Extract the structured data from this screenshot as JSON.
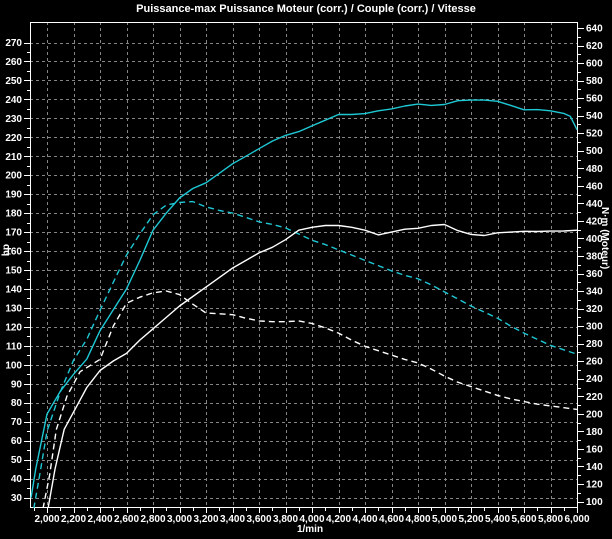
{
  "title": "Puissance-max Puissance Moteur (corr.) / Couple (corr.) / Vitesse",
  "colors": {
    "background": "#000000",
    "grid": "#858585",
    "border": "#ffffff",
    "text": "#ffffff",
    "cyan": "#1ec8d4",
    "white": "#ffffff"
  },
  "chart_data": {
    "type": "line",
    "title": "Puissance-max Puissance Moteur (corr.) / Couple (corr.) / Vitesse",
    "grid": "dashed",
    "legend": "none",
    "x_axis": {
      "label": "1/min",
      "range": [
        1872,
        6008
      ],
      "major_step": 200,
      "minor_step": 100,
      "tick_values": [
        2000,
        2200,
        2400,
        2600,
        2800,
        3000,
        3200,
        3400,
        3600,
        3800,
        4000,
        4200,
        4400,
        4600,
        4800,
        5000,
        5200,
        5400,
        5600,
        5800,
        6000
      ],
      "tick_labels": [
        "2,000",
        "2,200",
        "2,400",
        "2,600",
        "2,800",
        "3,000",
        "3,200",
        "3,400",
        "3,600",
        "3,800",
        "4,000",
        "4,200",
        "4,400",
        "4,600",
        "4,800",
        "5,000",
        "5,200",
        "5,400",
        "5,600",
        "5,800",
        "6,000"
      ]
    },
    "left_axis": {
      "label": "hp",
      "range": [
        26,
        281
      ],
      "major_step": 10,
      "minor_step": 5,
      "tick_values": [
        270,
        260,
        250,
        240,
        230,
        220,
        210,
        200,
        190,
        180,
        170,
        160,
        150,
        140,
        130,
        120,
        110,
        100,
        90,
        80,
        70,
        60,
        50,
        40,
        30
      ]
    },
    "right_axis": {
      "label": "N·m (Moteur)",
      "range": [
        93,
        647
      ],
      "major_step": 20,
      "minor_step": 10,
      "tick_values": [
        640,
        620,
        600,
        580,
        560,
        540,
        520,
        500,
        480,
        460,
        440,
        420,
        400,
        380,
        360,
        340,
        320,
        300,
        280,
        260,
        240,
        220,
        200,
        180,
        160,
        140,
        120,
        100
      ]
    },
    "series": [
      {
        "name": "puissance corrigee - courbe cyan pleine",
        "axis": "left",
        "unit": "hp",
        "color": "cyan",
        "style": "solid",
        "peak": {
          "rpm": 5250,
          "value": 239.6
        },
        "points": [
          [
            1880,
            30
          ],
          [
            1915,
            45
          ],
          [
            1950,
            57
          ],
          [
            2000,
            74
          ],
          [
            2100,
            86
          ],
          [
            2200,
            95
          ],
          [
            2300,
            103
          ],
          [
            2400,
            118
          ],
          [
            2500,
            129
          ],
          [
            2600,
            140
          ],
          [
            2700,
            155
          ],
          [
            2800,
            171
          ],
          [
            2900,
            180
          ],
          [
            3000,
            188
          ],
          [
            3100,
            193
          ],
          [
            3200,
            196
          ],
          [
            3300,
            201
          ],
          [
            3400,
            206
          ],
          [
            3500,
            210
          ],
          [
            3600,
            214
          ],
          [
            3700,
            218
          ],
          [
            3800,
            221
          ],
          [
            3900,
            223
          ],
          [
            4000,
            226
          ],
          [
            4100,
            229
          ],
          [
            4200,
            232
          ],
          [
            4300,
            232
          ],
          [
            4400,
            232.5
          ],
          [
            4500,
            234
          ],
          [
            4600,
            235
          ],
          [
            4700,
            236.5
          ],
          [
            4800,
            237.5
          ],
          [
            4900,
            236.8
          ],
          [
            5000,
            237.3
          ],
          [
            5100,
            239.3
          ],
          [
            5200,
            239.6
          ],
          [
            5300,
            239.6
          ],
          [
            5400,
            239
          ],
          [
            5500,
            236.8
          ],
          [
            5600,
            234.5
          ],
          [
            5700,
            234.6
          ],
          [
            5800,
            234
          ],
          [
            5900,
            232.6
          ],
          [
            5950,
            231
          ],
          [
            6000,
            224
          ]
        ]
      },
      {
        "name": "couple corrige - courbe cyan pointillee",
        "axis": "right",
        "unit": "N·m",
        "color": "cyan",
        "style": "dashed",
        "peak": {
          "rpm": 3100,
          "value": 442
        },
        "points": [
          [
            1900,
            92
          ],
          [
            1950,
            135
          ],
          [
            2000,
            180
          ],
          [
            2100,
            225
          ],
          [
            2200,
            261
          ],
          [
            2300,
            285
          ],
          [
            2400,
            318
          ],
          [
            2500,
            350
          ],
          [
            2600,
            381
          ],
          [
            2700,
            405
          ],
          [
            2800,
            427
          ],
          [
            2900,
            438
          ],
          [
            3000,
            441
          ],
          [
            3100,
            442
          ],
          [
            3200,
            436
          ],
          [
            3300,
            432
          ],
          [
            3400,
            429
          ],
          [
            3500,
            424
          ],
          [
            3600,
            419
          ],
          [
            3700,
            416
          ],
          [
            3800,
            412
          ],
          [
            3900,
            405
          ],
          [
            4000,
            398
          ],
          [
            4100,
            393
          ],
          [
            4200,
            387
          ],
          [
            4300,
            381
          ],
          [
            4400,
            375
          ],
          [
            4500,
            369
          ],
          [
            4600,
            363
          ],
          [
            4700,
            358
          ],
          [
            4800,
            354
          ],
          [
            4900,
            347
          ],
          [
            5000,
            339
          ],
          [
            5100,
            331
          ],
          [
            5200,
            323
          ],
          [
            5300,
            316
          ],
          [
            5400,
            309
          ],
          [
            5500,
            300
          ],
          [
            5600,
            292
          ],
          [
            5700,
            285
          ],
          [
            5800,
            278
          ],
          [
            5900,
            273
          ],
          [
            6000,
            268
          ]
        ]
      },
      {
        "name": "puissance corrigee - courbe blanche pleine",
        "axis": "left",
        "unit": "hp",
        "color": "white",
        "style": "solid",
        "peak": {
          "rpm": 5000,
          "value": 174
        },
        "points": [
          [
            2010,
            25
          ],
          [
            2060,
            45
          ],
          [
            2130,
            66
          ],
          [
            2200,
            75
          ],
          [
            2300,
            88
          ],
          [
            2400,
            97
          ],
          [
            2500,
            102
          ],
          [
            2600,
            106
          ],
          [
            2700,
            113
          ],
          [
            2800,
            119
          ],
          [
            2900,
            125
          ],
          [
            3000,
            131
          ],
          [
            3100,
            136
          ],
          [
            3200,
            141
          ],
          [
            3300,
            146
          ],
          [
            3400,
            151
          ],
          [
            3500,
            155
          ],
          [
            3600,
            159
          ],
          [
            3700,
            162
          ],
          [
            3800,
            166
          ],
          [
            3900,
            171
          ],
          [
            4000,
            172.5
          ],
          [
            4100,
            173.5
          ],
          [
            4200,
            173.5
          ],
          [
            4300,
            172.5
          ],
          [
            4400,
            171
          ],
          [
            4500,
            168.5
          ],
          [
            4600,
            170
          ],
          [
            4700,
            171.5
          ],
          [
            4800,
            172
          ],
          [
            4900,
            173.5
          ],
          [
            5000,
            174
          ],
          [
            5100,
            170.8
          ],
          [
            5200,
            168.8
          ],
          [
            5300,
            168.2
          ],
          [
            5400,
            169.6
          ],
          [
            5500,
            170
          ],
          [
            5600,
            170.4
          ],
          [
            5700,
            170.3
          ],
          [
            5800,
            170.5
          ],
          [
            5900,
            170.6
          ],
          [
            6000,
            171
          ]
        ]
      },
      {
        "name": "couple corrige - courbe blanche pointillee",
        "axis": "right",
        "unit": "N·m",
        "color": "white",
        "style": "dashed",
        "peak": {
          "rpm": 2900,
          "value": 340
        },
        "points": [
          [
            1970,
            92
          ],
          [
            2020,
            130
          ],
          [
            2070,
            182
          ],
          [
            2150,
            220
          ],
          [
            2250,
            248
          ],
          [
            2400,
            262
          ],
          [
            2500,
            300
          ],
          [
            2600,
            326
          ],
          [
            2700,
            333
          ],
          [
            2800,
            338
          ],
          [
            2900,
            340
          ],
          [
            3000,
            336
          ],
          [
            3100,
            325
          ],
          [
            3200,
            315
          ],
          [
            3300,
            314
          ],
          [
            3400,
            313
          ],
          [
            3500,
            309
          ],
          [
            3600,
            306
          ],
          [
            3700,
            305
          ],
          [
            3800,
            305
          ],
          [
            3900,
            306
          ],
          [
            4000,
            303
          ],
          [
            4100,
            298
          ],
          [
            4200,
            292
          ],
          [
            4300,
            284
          ],
          [
            4400,
            277
          ],
          [
            4500,
            272
          ],
          [
            4600,
            267
          ],
          [
            4700,
            262
          ],
          [
            4800,
            258
          ],
          [
            4900,
            251
          ],
          [
            5000,
            243
          ],
          [
            5100,
            236
          ],
          [
            5200,
            231
          ],
          [
            5300,
            226
          ],
          [
            5400,
            221
          ],
          [
            5500,
            217
          ],
          [
            5600,
            214
          ],
          [
            5700,
            211
          ],
          [
            5800,
            209
          ],
          [
            5900,
            207
          ],
          [
            6000,
            205
          ]
        ]
      }
    ]
  }
}
